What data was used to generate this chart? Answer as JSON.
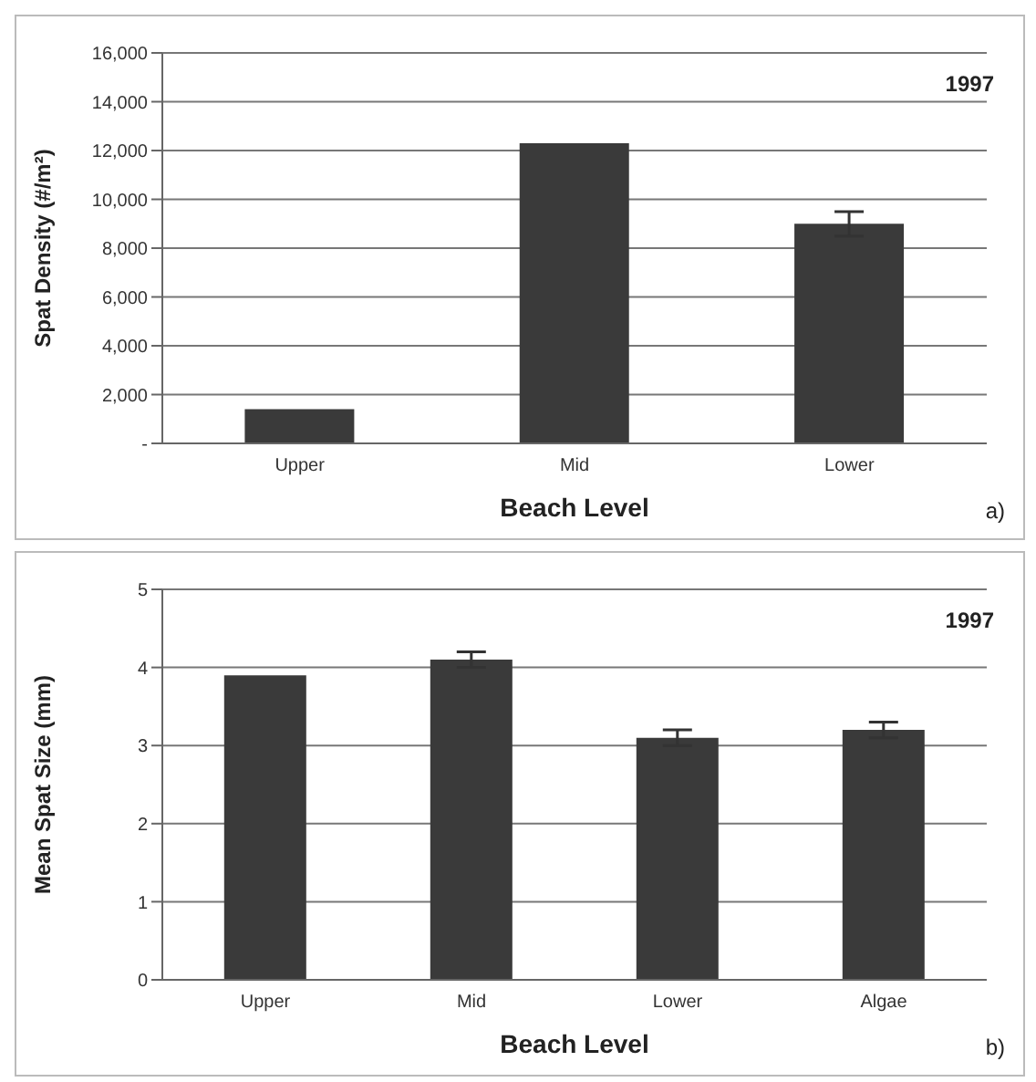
{
  "chart_data": [
    {
      "type": "bar",
      "categories": [
        "Upper",
        "Mid",
        "Lower"
      ],
      "values": [
        1400,
        12300,
        9000
      ],
      "errors": [
        null,
        null,
        500
      ],
      "color": "#3a3a3a",
      "xlabel": "Beach Level",
      "ylabel": "Spat Density (#/m²)",
      "ylim": [
        0,
        16000
      ],
      "yticks": [
        {
          "value": 0,
          "label": "-"
        },
        {
          "value": 2000,
          "label": "2,000"
        },
        {
          "value": 4000,
          "label": "4,000"
        },
        {
          "value": 6000,
          "label": "6,000"
        },
        {
          "value": 8000,
          "label": "8,000"
        },
        {
          "value": 10000,
          "label": "10,000"
        },
        {
          "value": 12000,
          "label": "12,000"
        },
        {
          "value": 14000,
          "label": "14,000"
        },
        {
          "value": 16000,
          "label": "16,000"
        }
      ],
      "grid": "y",
      "annotations": [
        "1997",
        "a)"
      ]
    },
    {
      "type": "bar",
      "categories": [
        "Upper",
        "Mid",
        "Lower",
        "Algae"
      ],
      "values": [
        3.9,
        4.1,
        3.1,
        3.2
      ],
      "errors": [
        null,
        0.1,
        0.1,
        0.1
      ],
      "color": "#3a3a3a",
      "xlabel": "Beach Level",
      "ylabel": "Mean Spat Size (mm)",
      "ylim": [
        0,
        5
      ],
      "yticks": [
        0,
        1,
        2,
        3,
        4,
        5
      ],
      "grid": "y",
      "annotations": [
        "1997",
        "b)"
      ]
    }
  ]
}
